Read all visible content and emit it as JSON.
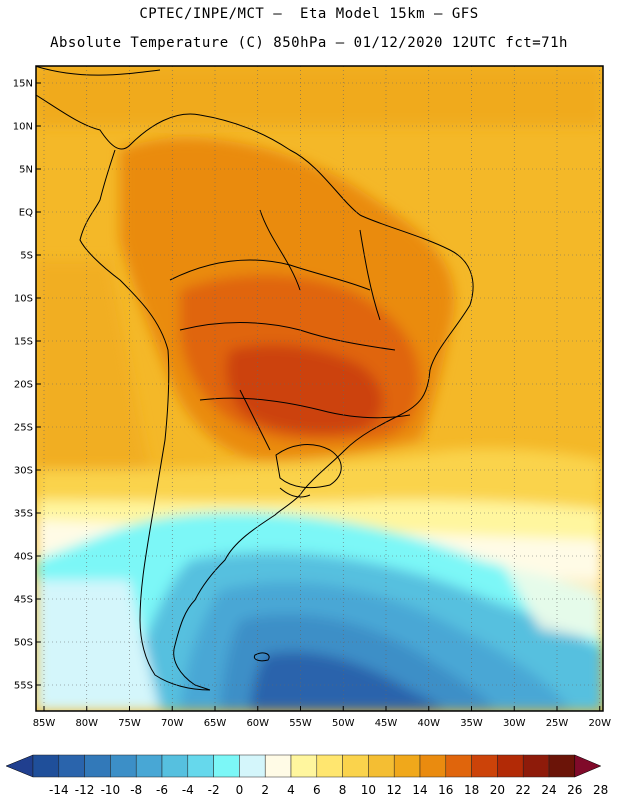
{
  "header": {
    "title_line1": "CPTEC/INPE/MCT –  Eta Model 15km – GFS",
    "title_line2": "Absolute Temperature (C) 850hPa – 01/12/2020 12UTC fct=71h"
  },
  "map": {
    "lat_labels": [
      "15N",
      "10N",
      "5N",
      "EQ",
      "5S",
      "10S",
      "15S",
      "20S",
      "25S",
      "30S",
      "35S",
      "40S",
      "45S",
      "50S",
      "55S"
    ],
    "lon_labels": [
      "85W",
      "80W",
      "75W",
      "70W",
      "65W",
      "60W",
      "55W",
      "50W",
      "45W",
      "40W",
      "35W",
      "30W",
      "25W",
      "20W"
    ]
  },
  "colorbar": {
    "colors": [
      "#1f4f9a",
      "#2a64ac",
      "#3279b9",
      "#3c8fc7",
      "#48a7d5",
      "#56c0df",
      "#66d8ec",
      "#7cf7f7",
      "#d4f6fb",
      "#fffbe6",
      "#fff69e",
      "#ffe66f",
      "#fad34c",
      "#f4be33",
      "#f0a81b",
      "#ea8b0f",
      "#e0650c",
      "#cc4309",
      "#b22a06",
      "#8e1b0a",
      "#6b1408"
    ],
    "under_color": "#203f8f",
    "over_color": "#800a2a",
    "labels": [
      "-14",
      "-12",
      "-10",
      "-8",
      "-6",
      "-4",
      "-2",
      "0",
      "2",
      "4",
      "6",
      "8",
      "10",
      "12",
      "14",
      "16",
      "18",
      "20",
      "22",
      "24",
      "26",
      "28"
    ]
  }
}
